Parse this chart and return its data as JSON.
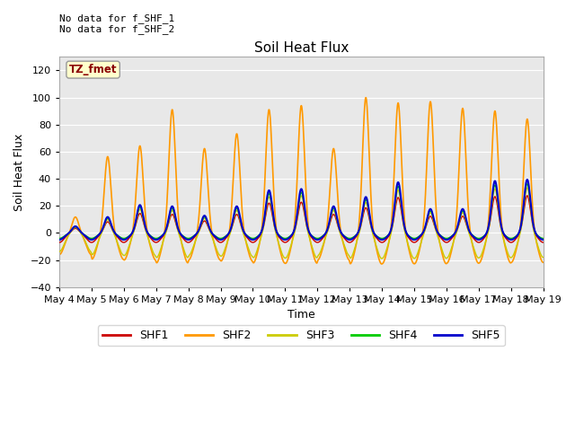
{
  "title": "Soil Heat Flux",
  "xlabel": "Time",
  "ylabel": "Soil Heat Flux",
  "ylim": [
    -40,
    130
  ],
  "yticks": [
    -40,
    -20,
    0,
    20,
    40,
    60,
    80,
    100,
    120
  ],
  "axes_bg_color": "#e8e8e8",
  "fig_bg_color": "#ffffff",
  "annotation_text": "No data for f_SHF_1\nNo data for f_SHF_2",
  "tz_label": "TZ_fmet",
  "legend_entries": [
    "SHF1",
    "SHF2",
    "SHF3",
    "SHF4",
    "SHF5"
  ],
  "legend_colors": [
    "#cc0000",
    "#ff9900",
    "#cccc00",
    "#00cc00",
    "#0000cc"
  ],
  "shf2_peaks": [
    12,
    57,
    65,
    92,
    63,
    74,
    92,
    95,
    63,
    101,
    97,
    98,
    93,
    91,
    85
  ],
  "shf_cluster_peaks": [
    5,
    12,
    21,
    20,
    13,
    20,
    32,
    33,
    20,
    27,
    38,
    18,
    18,
    39,
    40
  ],
  "date_labels": [
    "May 4",
    "May 5",
    "May 6",
    "May 7",
    "May 8",
    "May 9",
    "May 10",
    "May 11",
    "May 12",
    "May 13",
    "May 14",
    "May 15",
    "May 16",
    "May 17",
    "May 18",
    "May 19"
  ]
}
